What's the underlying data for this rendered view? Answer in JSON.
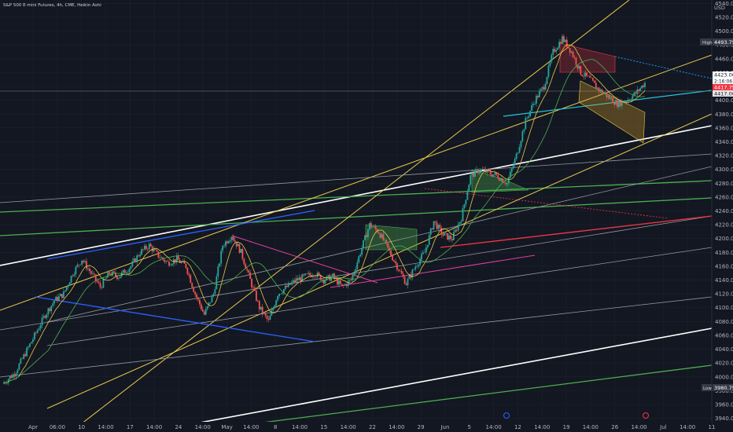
{
  "header": {
    "title": "S&P 500 E-mini Futures, 4h, CME, Heikin Ashi",
    "currency": "USD"
  },
  "price_axis": {
    "high_label": "High",
    "high_value": "4493.75",
    "low_label": "Low",
    "low_value": "3980.75",
    "last_price": "4423.00",
    "countdown": "2:16:06",
    "price_tag_2": "4417.75",
    "price_tag_3": "4417.00"
  },
  "chart_data": {
    "type": "candlestick",
    "y_ticks": [
      3940,
      3960,
      3980,
      4000,
      4020,
      4040,
      4060,
      4080,
      4100,
      4120,
      4140,
      4160,
      4180,
      4200,
      4220,
      4240,
      4260,
      4280,
      4300,
      4320,
      4340,
      4360,
      4380,
      4400,
      4420,
      4440,
      4460,
      4480,
      4500,
      4520,
      4540
    ],
    "y_tick_labels": [
      "3940.00",
      "3960.00",
      "3980.00",
      "4000.00",
      "4020.00",
      "4040.00",
      "4060.00",
      "4080.00",
      "4100.00",
      "4120.00",
      "4140.00",
      "4160.00",
      "4180.00",
      "4200.00",
      "4220.00",
      "4240.00",
      "4260.00",
      "4280.00",
      "4300.00",
      "4320.00",
      "4340.00",
      "4360.00",
      "4380.00",
      "4400.00",
      "4420.00",
      "4440.00",
      "4460.00",
      "4480.00",
      "4500.00",
      "4520.00",
      "4540.00"
    ],
    "ylim": [
      3935,
      4545
    ],
    "x_ticks": [
      "Apr",
      "06:00",
      "10",
      "14:00",
      "17",
      "14:00",
      "24",
      "14:00",
      "May",
      "14:00",
      "8",
      "14:00",
      "15",
      "14:00",
      "22",
      "14:00",
      "29",
      "Jun",
      "5",
      "14:00",
      "12",
      "14:00",
      "19",
      "14:00",
      "26",
      "14:00",
      "Jul",
      "14:00",
      "11"
    ],
    "price_path": [
      [
        0,
        3990
      ],
      [
        4,
        4005
      ],
      [
        10,
        4055
      ],
      [
        14,
        4090
      ],
      [
        17,
        4110
      ],
      [
        20,
        4120
      ],
      [
        23,
        4150
      ],
      [
        26,
        4170
      ],
      [
        29,
        4150
      ],
      [
        32,
        4130
      ],
      [
        35,
        4150
      ],
      [
        38,
        4145
      ],
      [
        42,
        4160
      ],
      [
        45,
        4180
      ],
      [
        48,
        4190
      ],
      [
        51,
        4175
      ],
      [
        54,
        4165
      ],
      [
        57,
        4170
      ],
      [
        60,
        4160
      ],
      [
        63,
        4120
      ],
      [
        66,
        4090
      ],
      [
        69,
        4120
      ],
      [
        72,
        4190
      ],
      [
        75,
        4205
      ],
      [
        78,
        4180
      ],
      [
        81,
        4140
      ],
      [
        84,
        4100
      ],
      [
        87,
        4080
      ],
      [
        90,
        4120
      ],
      [
        93,
        4130
      ],
      [
        96,
        4140
      ],
      [
        99,
        4145
      ],
      [
        102,
        4150
      ],
      [
        105,
        4140
      ],
      [
        108,
        4145
      ],
      [
        111,
        4130
      ],
      [
        114,
        4140
      ],
      [
        117,
        4180
      ],
      [
        120,
        4220
      ],
      [
        123,
        4210
      ],
      [
        126,
        4185
      ],
      [
        129,
        4160
      ],
      [
        132,
        4135
      ],
      [
        135,
        4160
      ],
      [
        138,
        4180
      ],
      [
        141,
        4225
      ],
      [
        144,
        4205
      ],
      [
        147,
        4200
      ],
      [
        150,
        4230
      ],
      [
        153,
        4290
      ],
      [
        156,
        4300
      ],
      [
        159,
        4295
      ],
      [
        162,
        4290
      ],
      [
        165,
        4280
      ],
      [
        168,
        4320
      ],
      [
        171,
        4370
      ],
      [
        174,
        4400
      ],
      [
        177,
        4420
      ],
      [
        180,
        4470
      ],
      [
        183,
        4490
      ],
      [
        186,
        4470
      ],
      [
        189,
        4440
      ],
      [
        192,
        4430
      ],
      [
        195,
        4415
      ],
      [
        198,
        4405
      ],
      [
        201,
        4395
      ],
      [
        204,
        4400
      ],
      [
        207,
        4410
      ],
      [
        210,
        4425
      ]
    ]
  }
}
